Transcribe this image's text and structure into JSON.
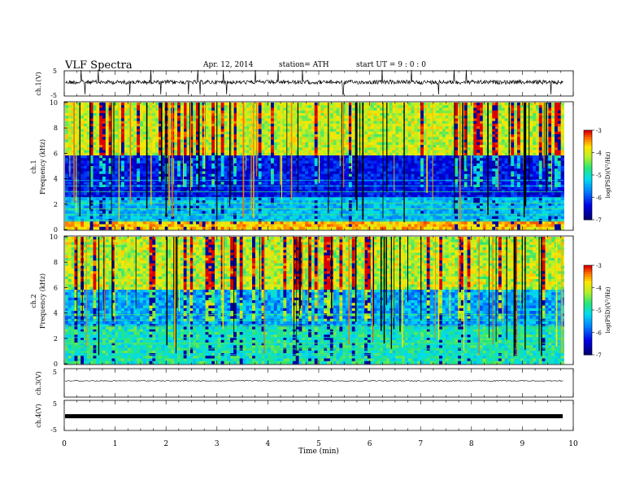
{
  "header": {
    "title": "VLF  Spectra",
    "date": "Apr. 12, 2014",
    "station": "station= ATH",
    "start": "start  UT  =   9  : 0  : 0"
  },
  "chart_data": [
    {
      "type": "line",
      "name": "ch1-waveform",
      "ylabel": "ch.1(V)",
      "ylim": [
        -5,
        5
      ],
      "yticks": [
        5,
        -5
      ],
      "xlim": [
        0,
        10
      ],
      "baseline": 0.0
    },
    {
      "type": "heatmap",
      "name": "ch1-spectrogram",
      "ylabel": "ch.1\nFrequency (kHz)",
      "ylabel_top": "ch.1",
      "ylabel_bottom": "Frequency (kHz)",
      "xlim": [
        0,
        9.8
      ],
      "ylim": [
        0,
        10
      ],
      "yticks": [
        0,
        2,
        4,
        6,
        8,
        10
      ],
      "colorbar": {
        "label": "log(PSD)(V²/Hz)",
        "ticks": [
          -3,
          -4,
          -5,
          -6,
          -7
        ],
        "range": [
          -7,
          -3
        ]
      }
    },
    {
      "type": "heatmap",
      "name": "ch2-spectrogram",
      "ylabel_top": "ch.2",
      "ylabel_bottom": "Frequency (kHz)",
      "xlim": [
        0,
        9.8
      ],
      "ylim": [
        0,
        10
      ],
      "yticks": [
        0,
        2,
        4,
        6,
        8,
        10
      ],
      "colorbar": {
        "label": "log(PSD)(V²/Hz)",
        "ticks": [
          -3,
          -4,
          -5,
          -6,
          -7
        ],
        "range": [
          -7,
          -3
        ]
      }
    },
    {
      "type": "line",
      "name": "ch3-waveform",
      "ylabel": "ch.3(V)",
      "ylim": [
        -5,
        5
      ],
      "yticks": [
        5
      ],
      "baseline": -1.5
    },
    {
      "type": "line",
      "name": "ch4-waveform",
      "ylabel": "ch.4(V)",
      "ylim": [
        -5,
        5
      ],
      "yticks": [
        5,
        -5
      ],
      "baseline": -1.0
    }
  ],
  "xaxis": {
    "label": "Time (min)",
    "ticks": [
      "0",
      "1",
      "2",
      "3",
      "4",
      "5",
      "6",
      "7",
      "8",
      "9",
      "10"
    ],
    "range": [
      0,
      10
    ]
  }
}
